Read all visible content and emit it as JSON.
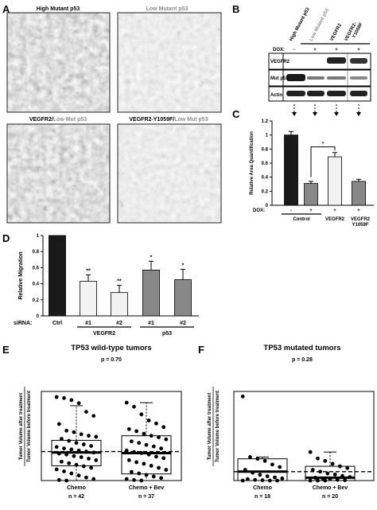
{
  "panelA": {
    "label": "A",
    "images": [
      {
        "title": "High Mutant p53",
        "parts": [
          "High Mutant p53"
        ]
      },
      {
        "title": "Low Mutant p53",
        "parts": [
          "Low Mutant p53"
        ]
      },
      {
        "title": "VEGFR2/Low Mut p53",
        "parts": [
          "VEGFR2/",
          "Low Mut p53"
        ]
      },
      {
        "title": "VEGFR2-Y1059F/Low Mut p53",
        "parts": [
          "VEGFR2-Y1059F/",
          "Low Mut p53"
        ]
      }
    ]
  },
  "panelB": {
    "label": "B",
    "columns": [
      "High Mutant p53",
      "Low Mutant p53",
      "VEGFR2",
      "VEGFR2-Y1059F"
    ],
    "column_wrap": [
      "VEGFR2-",
      "Y1059F"
    ],
    "dox_label": "DOX:",
    "dox": [
      "-",
      "+",
      "+",
      "+"
    ],
    "bands": [
      "VEGFR2",
      "Mut p53",
      "Actin"
    ]
  },
  "panelC": {
    "label": "C",
    "chart_data": {
      "type": "bar",
      "categories": [
        "Control -",
        "Control +",
        "VEGFR2 +",
        "VEGFR2-Y1059F +"
      ],
      "values": [
        1.0,
        0.31,
        0.69,
        0.34
      ],
      "errors": [
        0.05,
        0.03,
        0.06,
        0.03
      ],
      "colors": [
        "#1a1a1a",
        "#888888",
        "#f2f2f2",
        "#888888"
      ],
      "ylabel": "Relative Area Quantification",
      "ylim": [
        0,
        1.2
      ],
      "yticks": [
        "0",
        "0.2",
        "0.4",
        "0.6",
        "0.8",
        "1",
        "1.2"
      ],
      "dox_label": "DOX:",
      "dox": [
        "-",
        "+",
        "+",
        "+"
      ],
      "group_labels": [
        "Control",
        "VEGFR2",
        "VEGFR2 Y1059F"
      ],
      "group_label_lines": [
        [
          "Control"
        ],
        [
          "VEGFR2"
        ],
        [
          "VEGFR2",
          "Y1059F"
        ]
      ],
      "significance": "*"
    }
  },
  "panelD": {
    "label": "D",
    "chart_data": {
      "type": "bar",
      "categories": [
        "Ctrl",
        "#1",
        "#2",
        "#1",
        "#2"
      ],
      "values": [
        1.0,
        0.43,
        0.29,
        0.57,
        0.45
      ],
      "errors": [
        0.0,
        0.08,
        0.09,
        0.11,
        0.13
      ],
      "colors": [
        "#1a1a1a",
        "#f2f2f2",
        "#f2f2f2",
        "#888888",
        "#888888"
      ],
      "stars": [
        "",
        "**",
        "**",
        "*",
        "*"
      ],
      "ylabel": "Relative Migration",
      "ylim": [
        0,
        1
      ],
      "yticks": [
        "0",
        "0.2",
        "0.4",
        "0.6",
        "0.8",
        "1"
      ],
      "x_prefix": "siRNA:",
      "groups": [
        "VEGFR2",
        "p53"
      ]
    }
  },
  "panelE": {
    "label": "E",
    "chart_data": {
      "type": "scatter",
      "title": "TP53 wild-type tumors",
      "pvalue": "p = 0.70",
      "ylabel_top": "Tumor Volume after treatment",
      "ylabel_bottom": "Tumor Volume before treatment",
      "ylim": [
        0,
        1.75
      ],
      "reference_line": 0.57,
      "groups": [
        {
          "name": "Chemo",
          "n": "n = 42",
          "median": 0.55,
          "q1": 0.29,
          "q3": 0.79,
          "whisker_low": 0.0,
          "whisker_high": 1.47,
          "points": [
            1.64,
            1.62,
            1.58,
            1.52,
            1.35,
            1.27,
            1.11,
            0.98,
            0.95,
            0.91,
            0.88,
            0.86,
            0.82,
            0.78,
            0.74,
            0.71,
            0.68,
            0.66,
            0.63,
            0.61,
            0.59,
            0.57,
            0.55,
            0.53,
            0.51,
            0.48,
            0.46,
            0.43,
            0.4,
            0.37,
            0.34,
            0.31,
            0.28,
            0.25,
            0.22,
            0.18,
            0.14,
            0.1,
            0.06,
            0.03,
            0.01,
            0.0
          ]
        },
        {
          "name": "Chemo + Bev",
          "n": "n = 37",
          "median": 0.54,
          "q1": 0.13,
          "q3": 0.88,
          "whisker_low": 0.0,
          "whisker_high": 1.53,
          "points": [
            1.53,
            1.45,
            1.3,
            1.18,
            1.12,
            1.05,
            1.01,
            0.97,
            0.92,
            0.88,
            0.85,
            0.81,
            0.77,
            0.74,
            0.7,
            0.67,
            0.63,
            0.59,
            0.56,
            0.54,
            0.51,
            0.47,
            0.44,
            0.4,
            0.36,
            0.33,
            0.29,
            0.25,
            0.21,
            0.17,
            0.14,
            0.11,
            0.08,
            0.05,
            0.03,
            0.01,
            0.0
          ]
        }
      ]
    }
  },
  "panelF": {
    "label": "F",
    "chart_data": {
      "type": "scatter",
      "title": "TP53 mutated tumors",
      "pvalue": "p = 0.28",
      "ylabel_top": "Tumor Volume after treatment",
      "ylabel_bottom": "Tumor Volume before treatment",
      "ylim": [
        0,
        2.5
      ],
      "reference_line": 0.25,
      "groups": [
        {
          "name": "Chemo",
          "n": "n = 18",
          "median": 0.25,
          "q1": 0.0,
          "q3": 0.61,
          "whisker_low": 0.0,
          "whisker_high": 0.66,
          "points": [
            2.36,
            0.66,
            0.61,
            0.55,
            0.45,
            0.38,
            0.3,
            0.22,
            0.16,
            0.12,
            0.09,
            0.06,
            0.04,
            0.02,
            0.01,
            0.0,
            0.0,
            0.0
          ]
        },
        {
          "name": "Chemo + Bev",
          "n": "n = 20",
          "median": 0.08,
          "q1": 0.0,
          "q3": 0.4,
          "whisker_low": 0.0,
          "whisker_high": 0.8,
          "points": [
            0.8,
            0.62,
            0.55,
            0.47,
            0.4,
            0.35,
            0.3,
            0.25,
            0.2,
            0.17,
            0.13,
            0.1,
            0.08,
            0.06,
            0.04,
            0.02,
            0.01,
            0.0,
            0.0,
            0.0
          ]
        }
      ]
    }
  }
}
